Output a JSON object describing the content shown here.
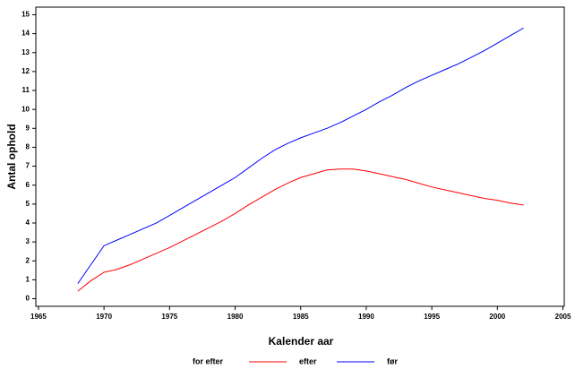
{
  "chart_data": {
    "type": "line",
    "x_label": "Kalender aar",
    "y_label": "Antal ophold",
    "legend_title": "for efter",
    "x": [
      1968,
      1969,
      1970,
      1971,
      1972,
      1973,
      1974,
      1975,
      1976,
      1977,
      1978,
      1979,
      1980,
      1981,
      1982,
      1983,
      1984,
      1985,
      1986,
      1987,
      1988,
      1989,
      1990,
      1991,
      1992,
      1993,
      1994,
      1995,
      1996,
      1997,
      1998,
      1999,
      2000,
      2001,
      2002
    ],
    "series": [
      {
        "name": "efter",
        "color": "#ff0000",
        "values": [
          0.4,
          0.95,
          1.4,
          1.55,
          1.8,
          2.1,
          2.4,
          2.7,
          3.05,
          3.4,
          3.75,
          4.1,
          4.5,
          4.95,
          5.35,
          5.75,
          6.1,
          6.4,
          6.6,
          6.8,
          6.85,
          6.85,
          6.75,
          6.6,
          6.45,
          6.3,
          6.1,
          5.9,
          5.75,
          5.6,
          5.45,
          5.3,
          5.2,
          5.05,
          4.95
        ]
      },
      {
        "name": "før",
        "color": "#0000ff",
        "values": [
          0.8,
          1.8,
          2.8,
          3.1,
          3.4,
          3.7,
          4.0,
          4.4,
          4.8,
          5.2,
          5.6,
          6.0,
          6.4,
          6.9,
          7.4,
          7.85,
          8.2,
          8.5,
          8.75,
          9.0,
          9.3,
          9.65,
          10.0,
          10.4,
          10.75,
          11.15,
          11.5,
          11.8,
          12.1,
          12.4,
          12.75,
          13.1,
          13.5,
          13.9,
          14.3
        ]
      }
    ],
    "xlim": [
      1964.8,
      2005.1
    ],
    "xticks": [
      1965,
      1970,
      1975,
      1980,
      1985,
      1990,
      1995,
      2000,
      2005
    ],
    "ylim": [
      -0.4,
      15.4
    ],
    "yticks": [
      0,
      1,
      2,
      3,
      4,
      5,
      6,
      7,
      8,
      9,
      10,
      11,
      12,
      13,
      14,
      15
    ]
  }
}
